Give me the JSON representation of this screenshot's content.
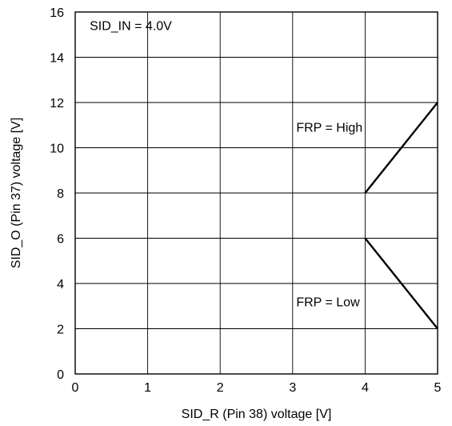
{
  "chart_data": {
    "type": "line",
    "xlabel": "SID_R (Pin 38) voltage [V]",
    "ylabel": "SID_O (Pin 37) voltage [V]",
    "xlim": [
      0,
      5
    ],
    "ylim": [
      0,
      16
    ],
    "xticks": [
      0,
      1,
      2,
      3,
      4,
      5
    ],
    "yticks": [
      0,
      2,
      4,
      6,
      8,
      10,
      12,
      14,
      16
    ],
    "grid": true,
    "series": [
      {
        "name": "FRP = High",
        "x": [
          4,
          5
        ],
        "y": [
          8,
          12
        ]
      },
      {
        "name": "FRP = Low",
        "x": [
          4,
          5
        ],
        "y": [
          6,
          2
        ]
      }
    ],
    "annotations": [
      {
        "text": "SID_IN = 4.0V",
        "x": 0.2,
        "y": 15.2
      },
      {
        "text": "FRP = High",
        "x": 3.05,
        "y": 10.7
      },
      {
        "text": "FRP = Low",
        "x": 3.05,
        "y": 3.0
      }
    ],
    "line_color": "#000000"
  }
}
